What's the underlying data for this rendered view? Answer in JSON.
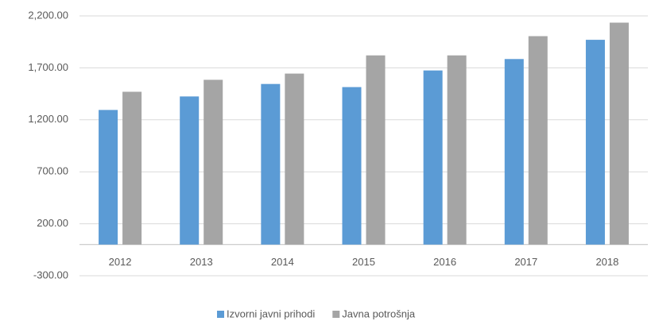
{
  "chart_data": {
    "type": "bar",
    "categories": [
      "2012",
      "2013",
      "2014",
      "2015",
      "2016",
      "2017",
      "2018"
    ],
    "series": [
      {
        "name": "Izvorni javni prihodi",
        "color": "#5b9bd5",
        "values": [
          1295,
          1425,
          1545,
          1515,
          1675,
          1785,
          1970
        ]
      },
      {
        "name": "Javna potrošnja",
        "color": "#a5a5a5",
        "values": [
          1470,
          1585,
          1645,
          1820,
          1820,
          2005,
          2135
        ]
      }
    ],
    "ylim": [
      -300,
      2200
    ],
    "yticks": [
      {
        "value": -300,
        "label": "-300.00"
      },
      {
        "value": 200,
        "label": "200.00"
      },
      {
        "value": 700,
        "label": "700.00"
      },
      {
        "value": 1200,
        "label": "1,200.00"
      },
      {
        "value": 1700,
        "label": "1,700.00"
      },
      {
        "value": 2200,
        "label": "2,200.00"
      }
    ],
    "grid": true,
    "legend": "bottom"
  }
}
